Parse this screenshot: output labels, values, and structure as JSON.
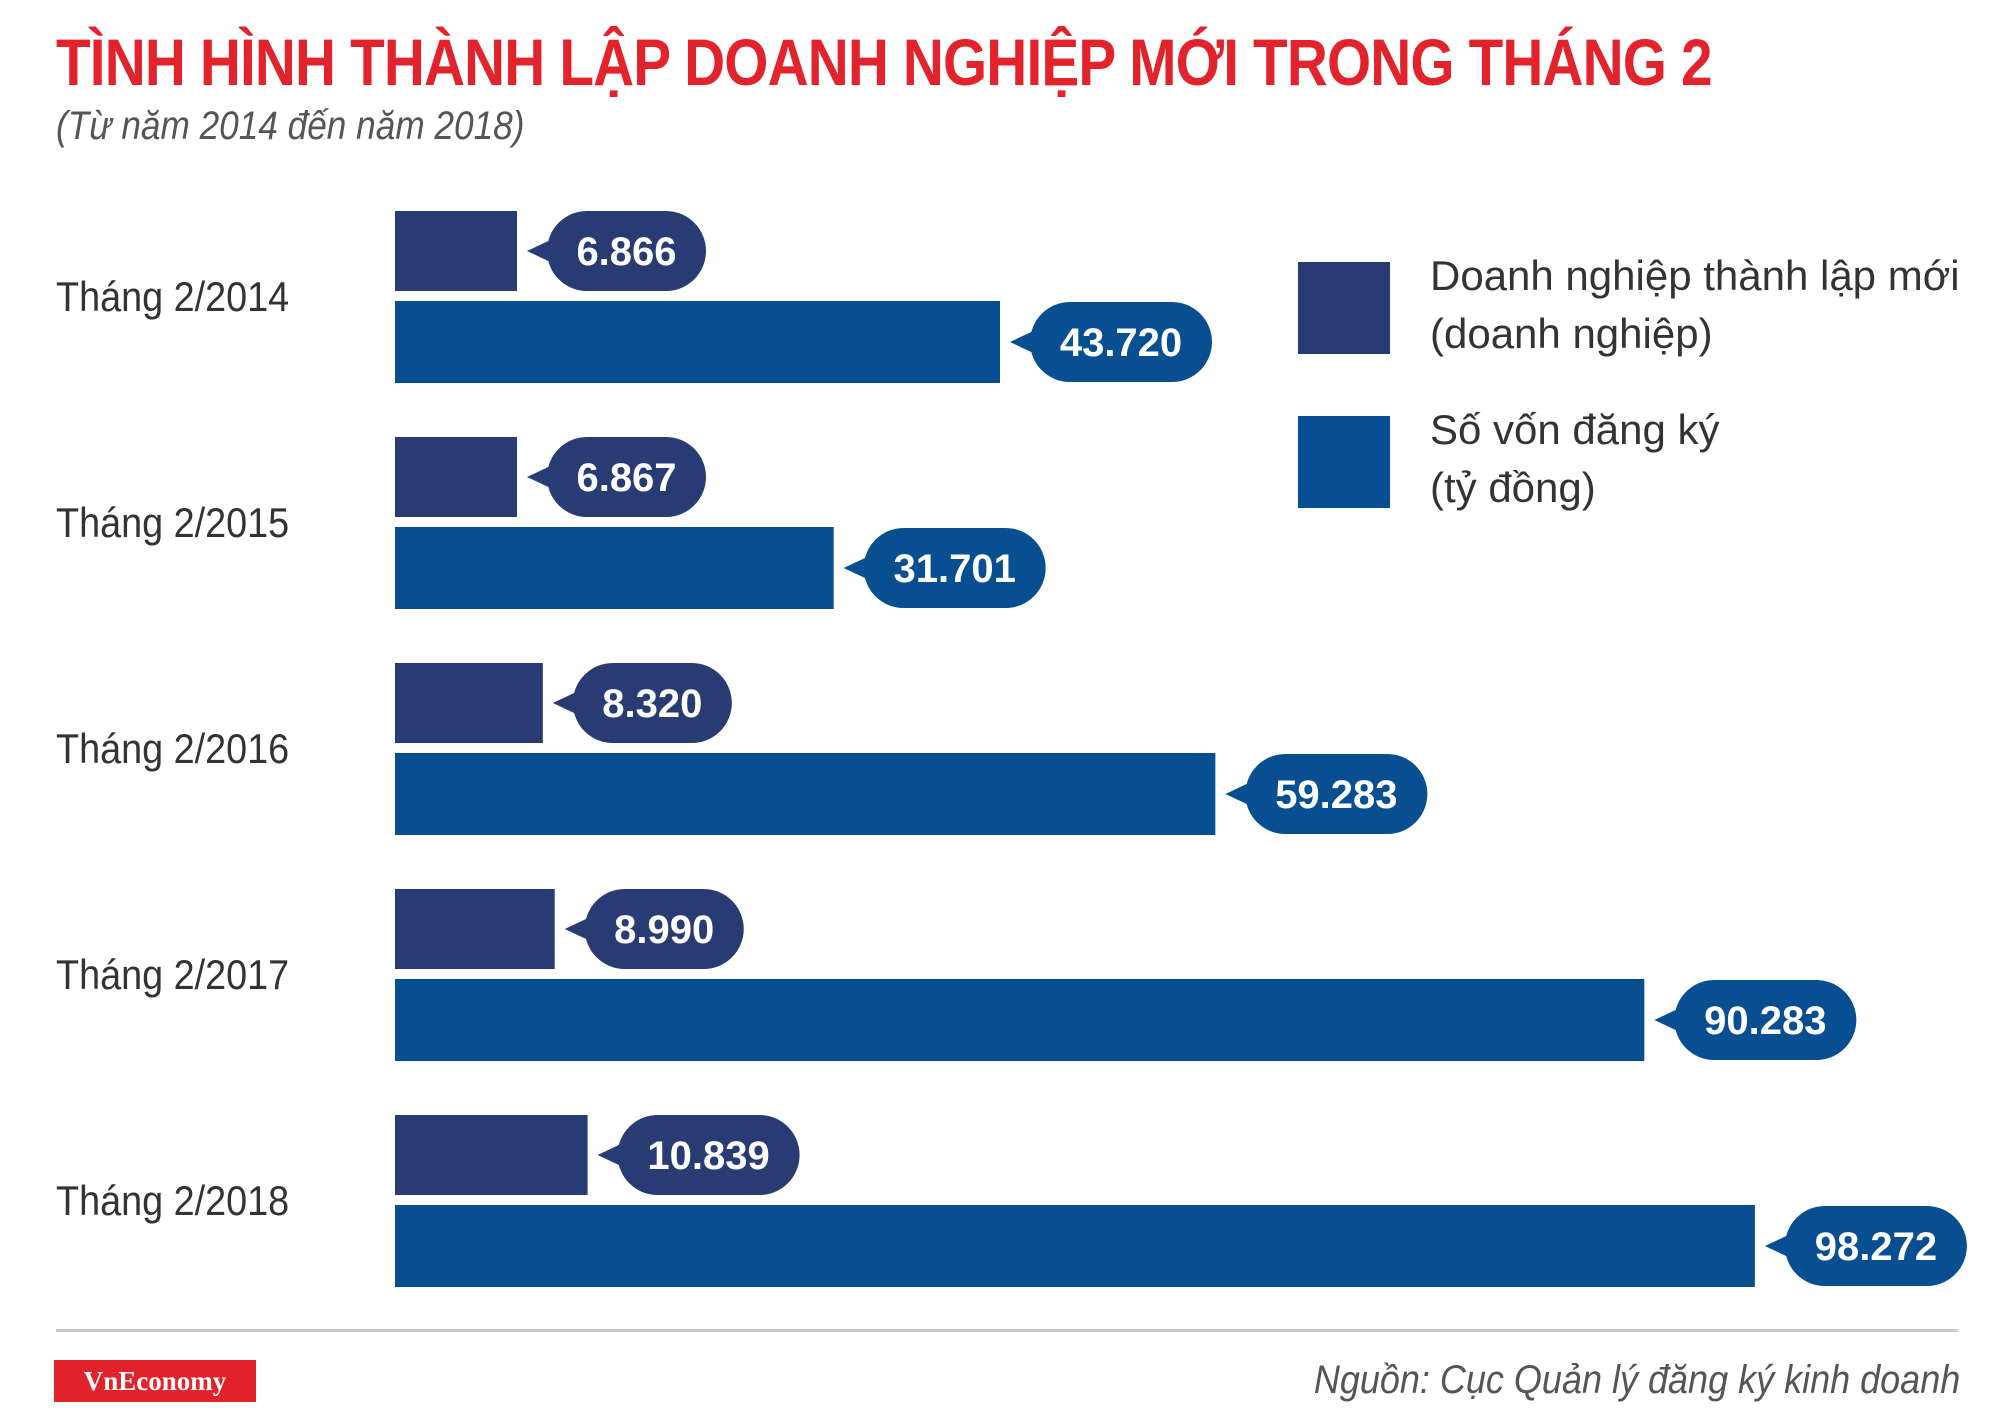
{
  "header": {
    "title": "TÌNH HÌNH THÀNH LẬP DOANH NGHIỆP MỚI TRONG THÁNG 2",
    "subtitle": "(Từ năm 2014 đến năm 2018)"
  },
  "colors": {
    "title": "#e3232b",
    "series_enterprises": "#283b73",
    "series_capital": "#074f91"
  },
  "chart_data": {
    "type": "bar",
    "orientation": "horizontal",
    "title": "TÌNH HÌNH THÀNH LẬP DOANH NGHIỆP MỚI TRONG THÁNG 2",
    "subtitle": "(Từ năm 2014 đến năm 2018)",
    "categories": [
      "Tháng 2/2014",
      "Tháng 2/2015",
      "Tháng 2/2016",
      "Tháng 2/2017",
      "Tháng 2/2018"
    ],
    "series": [
      {
        "name": "Doanh nghiệp thành lập mới (doanh nghiệp)",
        "legend_lines": [
          "Doanh nghiệp thành lập mới",
          "(doanh nghiệp)"
        ],
        "color": "#283b73",
        "values": [
          6866,
          6867,
          8320,
          8990,
          10839
        ],
        "labels": [
          "6.866",
          "6.867",
          "8.320",
          "8.990",
          "10.839"
        ]
      },
      {
        "name": "Số vốn đăng ký (tỷ đồng)",
        "legend_lines": [
          "Số vốn đăng ký",
          "(tỷ đồng)"
        ],
        "color": "#074f91",
        "values": [
          43720,
          31701,
          59283,
          90283,
          98272
        ],
        "labels": [
          "43.720",
          "31.701",
          "59.283",
          "90.283",
          "98.272"
        ]
      }
    ],
    "legend_position": "top-right",
    "grid": false
  },
  "footer": {
    "logo": "VnEconomy",
    "source": "Nguồn: Cục Quản lý đăng ký kinh doanh"
  }
}
